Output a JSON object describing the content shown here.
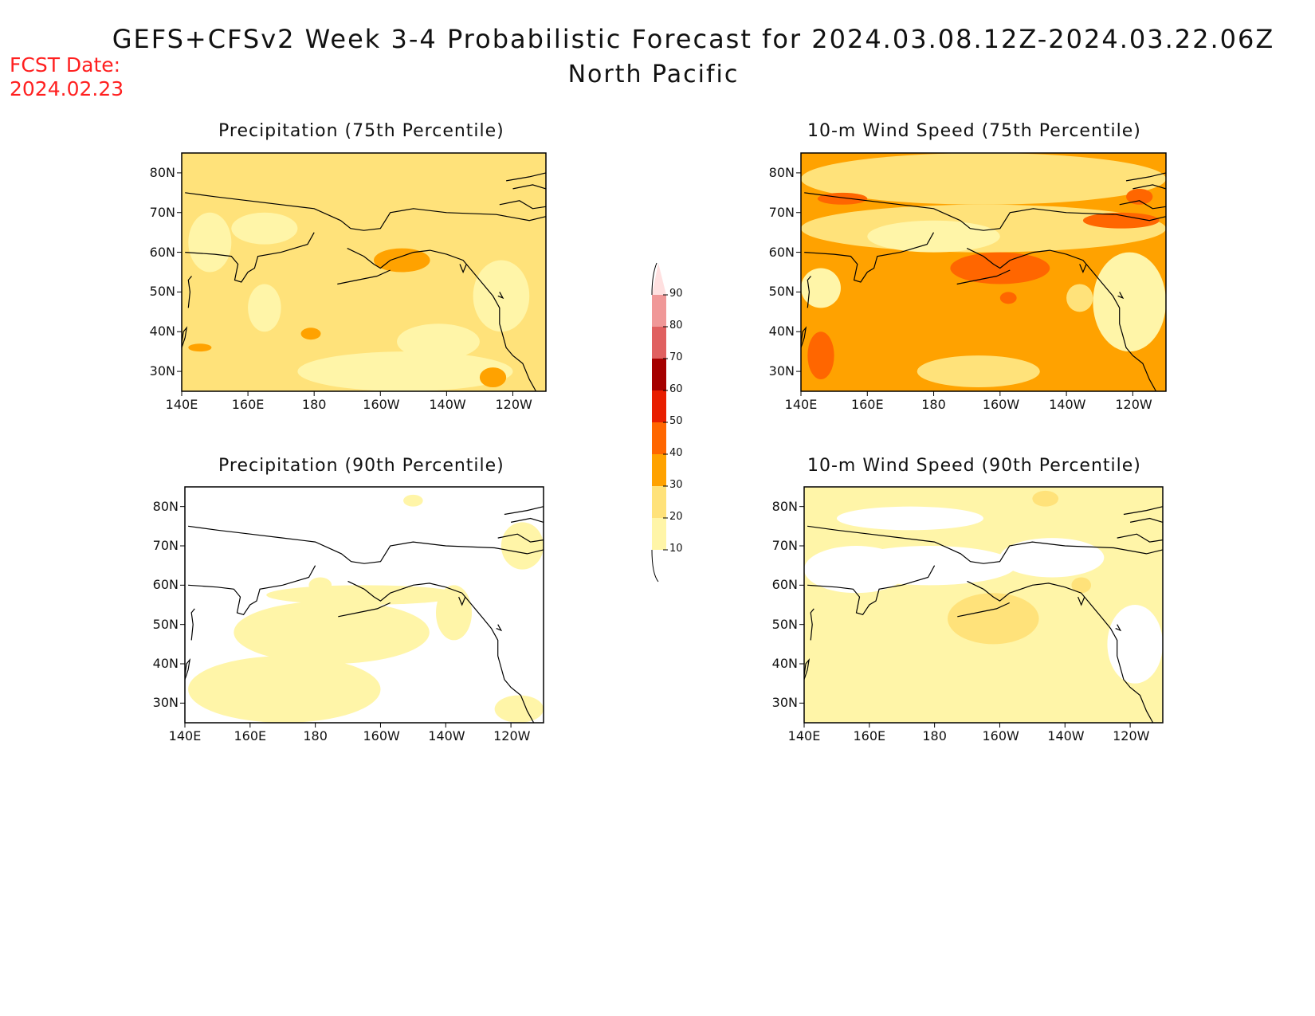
{
  "title": {
    "line1": "GEFS+CFSv2 Week 3-4 Probabilistic Forecast for 2024.03.08.12Z-2024.03.22.06Z",
    "line2": "North Pacific"
  },
  "fcst": {
    "label": "FCST Date:",
    "date": "2024.02.23"
  },
  "colors": {
    "c10": "#fff5a8",
    "c20": "#ffe27a",
    "c30": "#ffa200",
    "c40": "#ff6600",
    "c50": "#e81e00",
    "c60": "#a50000",
    "c70": "#e06060",
    "c80": "#f09898",
    "c90": "#ffe0e0"
  },
  "colorbar": {
    "ticks": [
      "10",
      "20",
      "30",
      "40",
      "50",
      "60",
      "70",
      "80",
      "90"
    ]
  },
  "map": {
    "xticks": [
      "140E",
      "160E",
      "180",
      "160W",
      "140W",
      "120W"
    ],
    "yticks": [
      "80N",
      "70N",
      "60N",
      "50N",
      "40N",
      "30N"
    ]
  },
  "panels": [
    {
      "title": "Precipitation (75th Percentile)",
      "base": "c20",
      "regions": [
        {
          "color": "c10",
          "lon": [
            142,
            155
          ],
          "lat": [
            55,
            70
          ]
        },
        {
          "color": "c10",
          "lon": [
            160,
            170
          ],
          "lat": [
            40,
            52
          ]
        },
        {
          "color": "c10",
          "lon": [
            175,
            240
          ],
          "lat": [
            25,
            35
          ]
        },
        {
          "color": "c10",
          "lon": [
            205,
            230
          ],
          "lat": [
            33,
            42
          ]
        },
        {
          "color": "c10",
          "lon": [
            155,
            175
          ],
          "lat": [
            62,
            70
          ]
        },
        {
          "color": "c10",
          "lon": [
            228,
            245
          ],
          "lat": [
            40,
            58
          ]
        },
        {
          "color": "c30",
          "lon": [
            176,
            182
          ],
          "lat": [
            38,
            41
          ]
        },
        {
          "color": "c30",
          "lon": [
            198,
            215
          ],
          "lat": [
            55,
            61
          ]
        },
        {
          "color": "c30",
          "lon": [
            230,
            238
          ],
          "lat": [
            26,
            31
          ]
        },
        {
          "color": "c30",
          "lon": [
            142,
            149
          ],
          "lat": [
            35,
            37
          ]
        }
      ]
    },
    {
      "title": "10-m Wind Speed (75th Percentile)",
      "base": "c30",
      "regions": [
        {
          "color": "c20",
          "lon": [
            140,
            250
          ],
          "lat": [
            72,
            85
          ]
        },
        {
          "color": "c20",
          "lon": [
            140,
            250
          ],
          "lat": [
            60,
            72
          ]
        },
        {
          "color": "c10",
          "lon": [
            160,
            200
          ],
          "lat": [
            60,
            68
          ]
        },
        {
          "color": "c10",
          "lon": [
            228,
            250
          ],
          "lat": [
            35,
            60
          ]
        },
        {
          "color": "c10",
          "lon": [
            140,
            152
          ],
          "lat": [
            46,
            56
          ]
        },
        {
          "color": "c20",
          "lon": [
            175,
            212
          ],
          "lat": [
            26,
            34
          ]
        },
        {
          "color": "c20",
          "lon": [
            220,
            228
          ],
          "lat": [
            45,
            52
          ]
        },
        {
          "color": "c40",
          "lon": [
            142,
            150
          ],
          "lat": [
            28,
            40
          ]
        },
        {
          "color": "c40",
          "lon": [
            185,
            215
          ],
          "lat": [
            52,
            60
          ]
        },
        {
          "color": "c40",
          "lon": [
            200,
            205
          ],
          "lat": [
            47,
            50
          ]
        },
        {
          "color": "c40",
          "lon": [
            145,
            160
          ],
          "lat": [
            72,
            75
          ]
        },
        {
          "color": "c40",
          "lon": [
            225,
            248
          ],
          "lat": [
            66,
            70
          ]
        },
        {
          "color": "c40",
          "lon": [
            238,
            246
          ],
          "lat": [
            72,
            76
          ]
        }
      ]
    },
    {
      "title": "Precipitation (90th Percentile)",
      "base": "white",
      "regions": [
        {
          "color": "c10",
          "lon": [
            141,
            200
          ],
          "lat": [
            25,
            42
          ]
        },
        {
          "color": "c10",
          "lon": [
            155,
            215
          ],
          "lat": [
            40,
            56
          ]
        },
        {
          "color": "c10",
          "lon": [
            165,
            225
          ],
          "lat": [
            55,
            60
          ]
        },
        {
          "color": "c10",
          "lon": [
            235,
            250
          ],
          "lat": [
            25,
            32
          ]
        },
        {
          "color": "c10",
          "lon": [
            237,
            250
          ],
          "lat": [
            64,
            76
          ]
        },
        {
          "color": "c10",
          "lon": [
            217,
            228
          ],
          "lat": [
            46,
            60
          ]
        },
        {
          "color": "c10",
          "lon": [
            178,
            185
          ],
          "lat": [
            58,
            62
          ]
        },
        {
          "color": "c10",
          "lon": [
            207,
            213
          ],
          "lat": [
            80,
            83
          ]
        }
      ]
    },
    {
      "title": "10-m Wind Speed (90th Percentile)",
      "base": "c10",
      "regions": [
        {
          "color": "white",
          "lon": [
            140,
            172
          ],
          "lat": [
            58,
            70
          ]
        },
        {
          "color": "white",
          "lon": [
            152,
            205
          ],
          "lat": [
            60,
            70
          ]
        },
        {
          "color": "white",
          "lon": [
            200,
            232
          ],
          "lat": [
            62,
            72
          ]
        },
        {
          "color": "white",
          "lon": [
            150,
            195
          ],
          "lat": [
            74,
            80
          ]
        },
        {
          "color": "white",
          "lon": [
            233,
            250
          ],
          "lat": [
            35,
            55
          ]
        },
        {
          "color": "c20",
          "lon": [
            184,
            212
          ],
          "lat": [
            45,
            58
          ]
        },
        {
          "color": "c20",
          "lon": [
            210,
            218
          ],
          "lat": [
            80,
            84
          ]
        },
        {
          "color": "c20",
          "lon": [
            222,
            228
          ],
          "lat": [
            58,
            62
          ]
        }
      ]
    }
  ]
}
